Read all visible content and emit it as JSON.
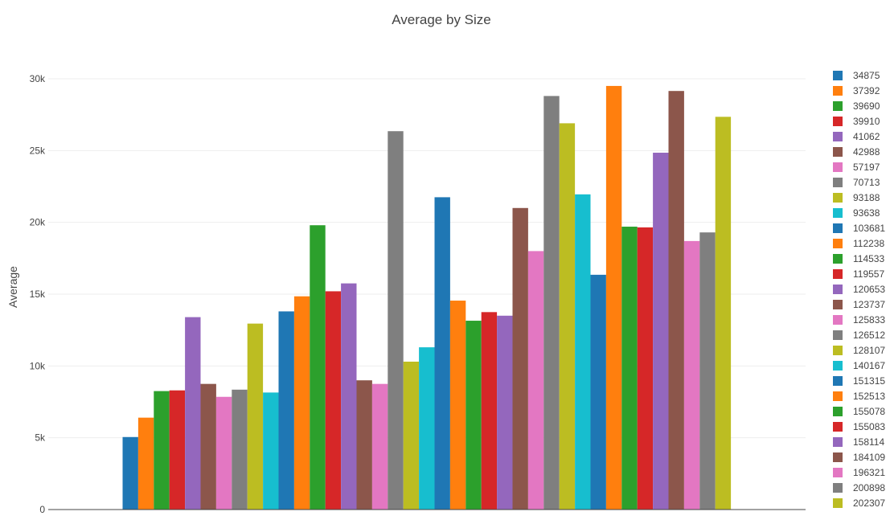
{
  "chart_data": {
    "type": "bar",
    "title": "Average by Size",
    "xlabel": "",
    "ylabel": "Average",
    "ylim": [
      0,
      30000
    ],
    "yticks": [
      {
        "value": 0,
        "label": "0"
      },
      {
        "value": 5000,
        "label": "5k"
      },
      {
        "value": 10000,
        "label": "10k"
      },
      {
        "value": 15000,
        "label": "15k"
      },
      {
        "value": 20000,
        "label": "20k"
      },
      {
        "value": 25000,
        "label": "25k"
      },
      {
        "value": 30000,
        "label": "30k"
      }
    ],
    "grid": true,
    "legend_position": "right",
    "series": [
      {
        "name": "34875",
        "value": 5050,
        "color": "#1f77b4"
      },
      {
        "name": "37392",
        "value": 6400,
        "color": "#ff7f0e"
      },
      {
        "name": "39690",
        "value": 8250,
        "color": "#2ca02c"
      },
      {
        "name": "39910",
        "value": 8300,
        "color": "#d62728"
      },
      {
        "name": "41062",
        "value": 13400,
        "color": "#9467bd"
      },
      {
        "name": "42988",
        "value": 8750,
        "color": "#8c564b"
      },
      {
        "name": "57197",
        "value": 7850,
        "color": "#e377c2"
      },
      {
        "name": "70713",
        "value": 8350,
        "color": "#7f7f7f"
      },
      {
        "name": "93188",
        "value": 12950,
        "color": "#bcbd22"
      },
      {
        "name": "93638",
        "value": 8150,
        "color": "#17becf"
      },
      {
        "name": "103681",
        "value": 13800,
        "color": "#1f77b4"
      },
      {
        "name": "112238",
        "value": 14850,
        "color": "#ff7f0e"
      },
      {
        "name": "114533",
        "value": 19800,
        "color": "#2ca02c"
      },
      {
        "name": "119557",
        "value": 15200,
        "color": "#d62728"
      },
      {
        "name": "120653",
        "value": 15750,
        "color": "#9467bd"
      },
      {
        "name": "123737",
        "value": 9000,
        "color": "#8c564b"
      },
      {
        "name": "125833",
        "value": 8750,
        "color": "#e377c2"
      },
      {
        "name": "126512",
        "value": 26350,
        "color": "#7f7f7f"
      },
      {
        "name": "128107",
        "value": 10300,
        "color": "#bcbd22"
      },
      {
        "name": "140167",
        "value": 11300,
        "color": "#17becf"
      },
      {
        "name": "151315",
        "value": 21750,
        "color": "#1f77b4"
      },
      {
        "name": "152513",
        "value": 14550,
        "color": "#ff7f0e"
      },
      {
        "name": "155078",
        "value": 13150,
        "color": "#2ca02c"
      },
      {
        "name": "155083",
        "value": 13750,
        "color": "#d62728"
      },
      {
        "name": "158114",
        "value": 13500,
        "color": "#9467bd"
      },
      {
        "name": "184109",
        "value": 21000,
        "color": "#8c564b"
      },
      {
        "name": "196321",
        "value": 18000,
        "color": "#e377c2"
      },
      {
        "name": "200898",
        "value": 28800,
        "color": "#7f7f7f"
      },
      {
        "name": "202307",
        "value": 26900,
        "color": "#bcbd22"
      },
      {
        "name": "",
        "value": 21950,
        "color": "#17becf"
      },
      {
        "name": "",
        "value": 16350,
        "color": "#1f77b4"
      },
      {
        "name": "",
        "value": 29500,
        "color": "#ff7f0e"
      },
      {
        "name": "",
        "value": 19700,
        "color": "#2ca02c"
      },
      {
        "name": "",
        "value": 19650,
        "color": "#d62728"
      },
      {
        "name": "",
        "value": 24850,
        "color": "#9467bd"
      },
      {
        "name": "",
        "value": 29150,
        "color": "#8c564b"
      },
      {
        "name": "",
        "value": 18700,
        "color": "#e377c2"
      },
      {
        "name": "",
        "value": 19300,
        "color": "#7f7f7f"
      },
      {
        "name": "",
        "value": 27350,
        "color": "#bcbd22"
      }
    ]
  }
}
